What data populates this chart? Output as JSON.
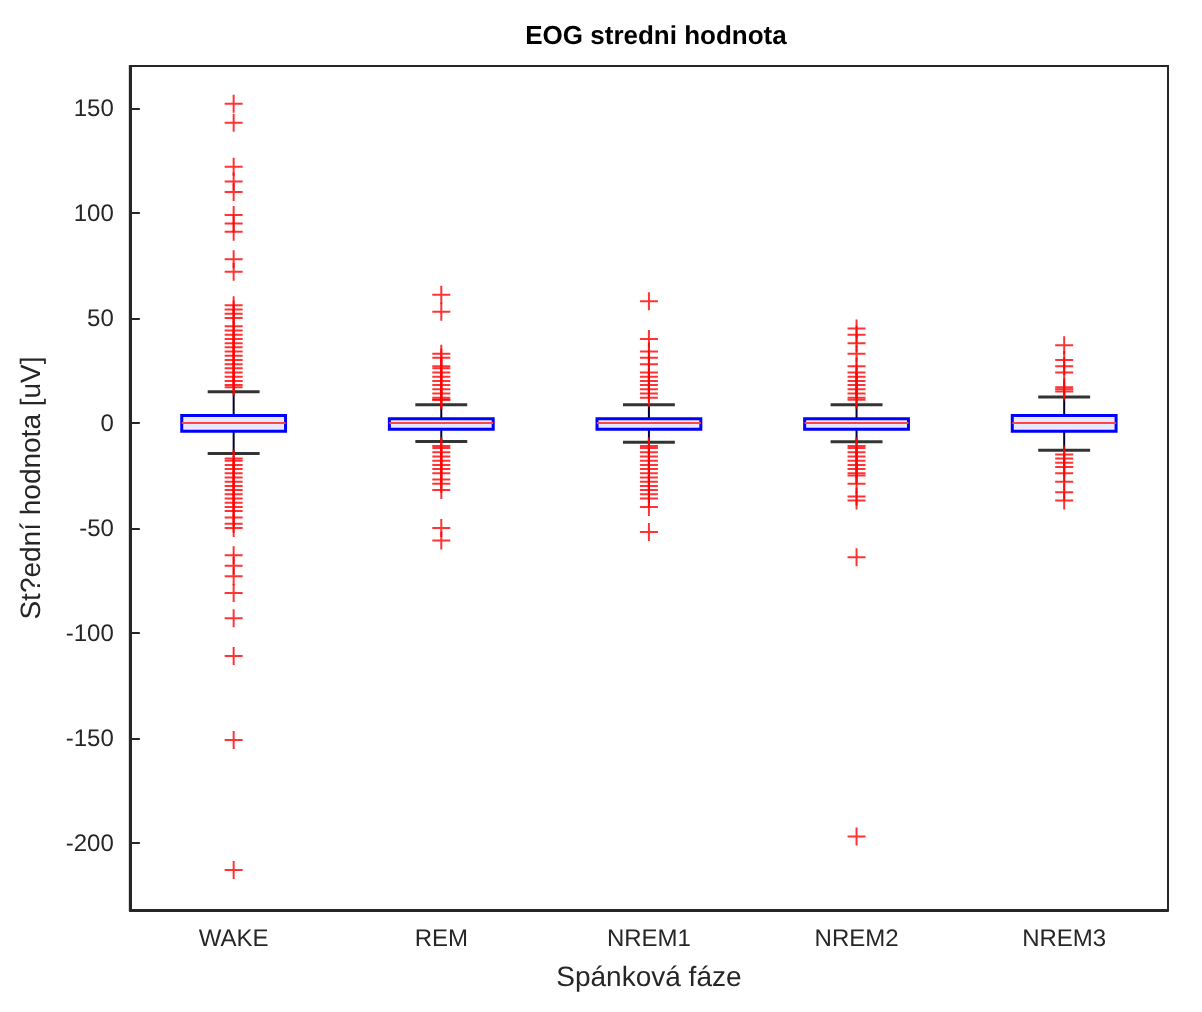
{
  "chart_data": {
    "type": "box",
    "title": "EOG stredni hodnota",
    "xlabel": "Spánková fáze",
    "ylabel": "St?ední hodnota [uV]",
    "categories": [
      "WAKE",
      "REM",
      "NREM1",
      "NREM2",
      "NREM3"
    ],
    "ylim": [
      -232,
      170
    ],
    "yticks": [
      -200,
      -150,
      -100,
      -50,
      0,
      50,
      100,
      150
    ],
    "series": [
      {
        "type": "box",
        "color": "#0000ff",
        "boxes": [
          {
            "low": -14.6,
            "q1": -4,
            "median": 0,
            "q3": 3.5,
            "high": 14.9
          },
          {
            "low": -8.9,
            "q1": -3,
            "median": 0,
            "q3": 2,
            "high": 8.6
          },
          {
            "low": -9.2,
            "q1": -3,
            "median": 0,
            "q3": 2,
            "high": 8.6
          },
          {
            "low": -9,
            "q1": -3,
            "median": 0,
            "q3": 2,
            "high": 8.6
          },
          {
            "low": -13,
            "q1": -4,
            "median": 0,
            "q3": 3.5,
            "high": 12.4
          }
        ]
      },
      {
        "type": "scatter",
        "color": "#ff0000",
        "marker": "cross",
        "x": [
          "WAKE",
          "WAKE",
          "WAKE",
          "WAKE",
          "WAKE",
          "WAKE",
          "WAKE",
          "WAKE",
          "WAKE",
          "WAKE",
          "WAKE",
          "WAKE",
          "WAKE",
          "WAKE",
          "WAKE",
          "WAKE",
          "WAKE",
          "WAKE",
          "WAKE",
          "WAKE",
          "WAKE",
          "WAKE",
          "WAKE",
          "WAKE",
          "WAKE",
          "WAKE",
          "WAKE",
          "WAKE",
          "WAKE",
          "WAKE",
          "WAKE",
          "WAKE",
          "WAKE",
          "WAKE",
          "WAKE",
          "WAKE",
          "WAKE",
          "WAKE",
          "WAKE",
          "WAKE",
          "WAKE",
          "WAKE",
          "WAKE",
          "WAKE",
          "WAKE",
          "WAKE",
          "WAKE",
          "WAKE",
          "WAKE",
          "WAKE",
          "WAKE",
          "WAKE",
          "WAKE",
          "WAKE",
          "WAKE",
          "REM",
          "REM",
          "REM",
          "REM",
          "REM",
          "REM",
          "REM",
          "REM",
          "REM",
          "REM",
          "REM",
          "REM",
          "REM",
          "REM",
          "REM",
          "REM",
          "REM",
          "REM",
          "REM",
          "REM",
          "REM",
          "REM",
          "REM",
          "REM",
          "REM",
          "REM",
          "REM",
          "REM",
          "NREM1",
          "NREM1",
          "NREM1",
          "NREM1",
          "NREM1",
          "NREM1",
          "NREM1",
          "NREM1",
          "NREM1",
          "NREM1",
          "NREM1",
          "NREM1",
          "NREM1",
          "NREM1",
          "NREM1",
          "NREM1",
          "NREM1",
          "NREM1",
          "NREM1",
          "NREM1",
          "NREM1",
          "NREM1",
          "NREM1",
          "NREM1",
          "NREM1",
          "NREM1",
          "NREM1",
          "NREM1",
          "NREM2",
          "NREM2",
          "NREM2",
          "NREM2",
          "NREM2",
          "NREM2",
          "NREM2",
          "NREM2",
          "NREM2",
          "NREM2",
          "NREM2",
          "NREM2",
          "NREM2",
          "NREM2",
          "NREM2",
          "NREM2",
          "NREM2",
          "NREM2",
          "NREM2",
          "NREM2",
          "NREM2",
          "NREM2",
          "NREM2",
          "NREM2",
          "NREM2",
          "NREM2",
          "NREM2",
          "NREM3",
          "NREM3",
          "NREM3",
          "NREM3",
          "NREM3",
          "NREM3",
          "NREM3",
          "NREM3",
          "NREM3",
          "NREM3",
          "NREM3",
          "NREM3",
          "NREM3",
          "NREM3",
          "NREM3"
        ],
        "values": [
          17,
          18,
          20,
          22,
          24,
          26,
          28,
          30,
          32,
          34,
          36,
          38,
          40,
          42,
          44,
          46,
          50,
          52,
          54,
          56,
          72,
          78,
          91,
          95,
          99,
          110,
          115,
          122,
          143,
          152,
          -17,
          -18,
          -20,
          -22,
          -24,
          -26,
          -28,
          -30,
          -32,
          -34,
          -36,
          -38,
          -40,
          -42,
          -45,
          -48,
          -50,
          -63,
          -68,
          -73,
          -81,
          -93,
          -111,
          -151,
          -213,
          11,
          12,
          14,
          16,
          18,
          20,
          22,
          24,
          26,
          27,
          31,
          33,
          53,
          61,
          -11,
          -12,
          -14,
          -16,
          -18,
          -20,
          -22,
          -24,
          -27,
          -29,
          -32,
          -50,
          -56,
          11,
          12,
          14,
          16,
          18,
          20,
          22,
          24,
          28,
          31,
          34,
          40,
          58,
          -11,
          -12,
          -14,
          -16,
          -18,
          -20,
          -22,
          -24,
          -26,
          -28,
          -30,
          -32,
          -34,
          -36,
          -40,
          -52,
          11,
          12,
          14,
          16,
          18,
          20,
          22,
          24,
          27,
          33,
          38,
          42,
          45,
          -11,
          -12,
          -14,
          -16,
          -18,
          -20,
          -22,
          -24,
          -25,
          -29,
          -35,
          -37,
          -64,
          -197,
          15,
          16,
          17,
          24,
          27,
          30,
          37,
          -15,
          -17,
          -19,
          -21,
          -24,
          -28,
          -33,
          -37
        ]
      }
    ]
  }
}
